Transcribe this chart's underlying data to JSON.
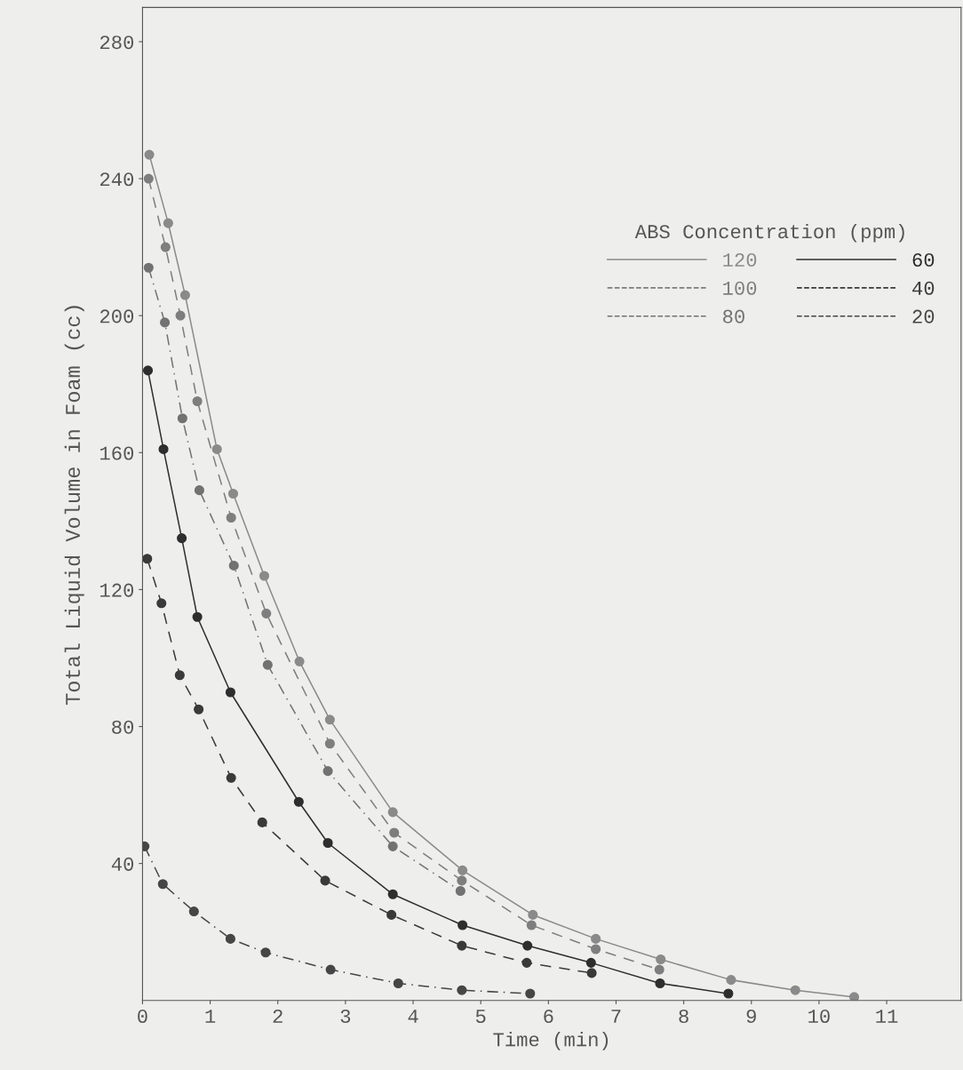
{
  "chart_data": {
    "type": "line",
    "xlabel": "Time (min)",
    "ylabel": "Total Liquid Volume in Foam (cc)",
    "legend_title": "ABS Concentration (ppm)",
    "xlim": [
      0,
      12.1
    ],
    "ylim": [
      0,
      290
    ],
    "xticks": [
      0,
      1,
      2,
      3,
      4,
      5,
      6,
      7,
      8,
      9,
      10,
      11
    ],
    "yticks": [
      40,
      80,
      120,
      160,
      200,
      240,
      280
    ],
    "grid": false,
    "legend": "top right",
    "marker": "circle",
    "series": [
      {
        "name": "120",
        "color": "#8a8a8a",
        "line_style": "solid",
        "x": [
          0.1,
          0.38,
          0.63,
          1.1,
          1.34,
          1.8,
          2.32,
          2.77,
          3.7,
          4.73,
          5.77,
          6.7,
          7.66,
          8.7,
          9.65,
          10.52
        ],
        "values": [
          247,
          227,
          206,
          161,
          148,
          124,
          99,
          82,
          55,
          38,
          25,
          18,
          12,
          6,
          3,
          1
        ]
      },
      {
        "name": "100",
        "color": "#7e7e7e",
        "line_style": "dashed",
        "x": [
          0.09,
          0.34,
          0.56,
          0.81,
          1.31,
          1.83,
          2.77,
          3.72,
          4.72,
          5.75,
          6.7,
          7.64
        ],
        "values": [
          240,
          220,
          200,
          175,
          141,
          113,
          75,
          49,
          35,
          22,
          15,
          9
        ]
      },
      {
        "name": "80",
        "color": "#727272",
        "line_style": "dotted",
        "x": [
          0.09,
          0.33,
          0.59,
          0.84,
          1.35,
          1.85,
          2.74,
          3.7,
          4.7
        ],
        "values": [
          214,
          198,
          170,
          149,
          127,
          98,
          67,
          45,
          32
        ]
      },
      {
        "name": "60",
        "color": "#2e2e2e",
        "line_style": "solid",
        "x": [
          0.08,
          0.31,
          0.58,
          0.81,
          1.3,
          2.31,
          2.74,
          3.7,
          4.73,
          5.69,
          6.63,
          7.65,
          8.66
        ],
        "values": [
          184,
          161,
          135,
          112,
          90,
          58,
          46,
          31,
          22,
          16,
          11,
          5,
          2
        ]
      },
      {
        "name": "40",
        "color": "#3a3a3a",
        "line_style": "dashed",
        "x": [
          0.07,
          0.28,
          0.55,
          0.83,
          1.31,
          1.77,
          2.7,
          3.68,
          4.72,
          5.68,
          6.64
        ],
        "values": [
          129,
          116,
          95,
          85,
          65,
          52,
          35,
          25,
          16,
          11,
          8
        ]
      },
      {
        "name": "20",
        "color": "#464646",
        "line_style": "dotted",
        "x": [
          0.03,
          0.3,
          0.76,
          1.3,
          1.82,
          2.78,
          3.78,
          4.72,
          5.73
        ],
        "values": [
          45,
          34,
          26,
          18,
          14,
          9,
          5,
          3,
          2
        ]
      }
    ]
  }
}
